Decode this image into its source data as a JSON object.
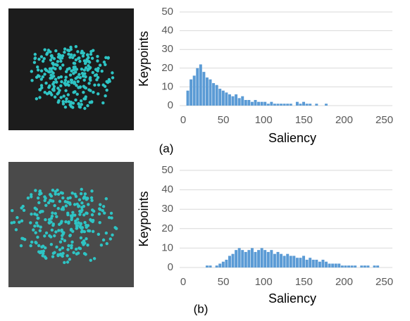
{
  "chart_data": [
    {
      "type": "histogram",
      "caption": "(a)",
      "xlabel": "Saliency",
      "ylabel": "Keypoints",
      "color": "#5b9bd5",
      "grid": true,
      "bins": [
        0,
        4,
        8,
        12,
        16,
        20,
        24,
        28,
        32,
        36,
        40,
        44,
        48,
        52,
        56,
        60,
        64,
        68,
        72,
        76,
        80,
        84,
        88,
        92,
        96,
        100,
        104,
        108,
        112,
        116,
        120,
        124,
        128,
        132,
        136,
        140,
        144,
        148,
        152,
        156,
        160,
        164,
        168,
        172,
        176,
        180,
        184,
        188,
        192,
        196,
        200,
        204,
        208,
        212,
        216,
        220,
        224,
        228,
        232,
        236,
        240,
        244,
        248,
        252
      ],
      "counts": [
        0,
        8,
        14,
        16,
        20,
        22,
        18,
        15,
        14,
        12,
        11,
        9,
        8,
        7,
        6,
        5,
        6,
        4,
        5,
        3,
        3,
        2,
        3,
        2,
        2,
        2,
        1,
        2,
        1,
        1,
        1,
        1,
        1,
        1,
        0,
        2,
        1,
        2,
        1,
        1,
        0,
        1,
        0,
        0,
        1,
        0,
        0,
        0,
        0,
        0,
        0,
        0,
        0,
        0,
        0,
        0,
        0,
        0,
        0,
        0,
        0,
        0,
        0
      ],
      "xlim": [
        0,
        260
      ],
      "ylim": [
        0,
        50
      ],
      "xticks": [
        0,
        50,
        100,
        150,
        200,
        250
      ],
      "yticks": [
        0,
        10,
        20,
        30,
        40,
        50
      ]
    },
    {
      "type": "histogram",
      "caption": "(b)",
      "xlabel": "Saliency",
      "ylabel": "Keypoints",
      "color": "#5b9bd5",
      "grid": true,
      "bins": [
        0,
        4,
        8,
        12,
        16,
        20,
        24,
        28,
        32,
        36,
        40,
        44,
        48,
        52,
        56,
        60,
        64,
        68,
        72,
        76,
        80,
        84,
        88,
        92,
        96,
        100,
        104,
        108,
        112,
        116,
        120,
        124,
        128,
        132,
        136,
        140,
        144,
        148,
        152,
        156,
        160,
        164,
        168,
        172,
        176,
        180,
        184,
        188,
        192,
        196,
        200,
        204,
        208,
        212,
        216,
        220,
        224,
        228,
        232,
        236,
        240,
        244,
        248,
        252
      ],
      "counts": [
        0,
        0,
        0,
        0,
        0,
        0,
        0,
        1,
        1,
        0,
        1,
        2,
        3,
        4,
        6,
        7,
        9,
        10,
        9,
        8,
        9,
        10,
        8,
        9,
        10,
        9,
        8,
        9,
        7,
        8,
        7,
        6,
        7,
        6,
        6,
        5,
        5,
        6,
        4,
        5,
        4,
        4,
        3,
        4,
        3,
        2,
        2,
        2,
        2,
        1,
        1,
        1,
        1,
        1,
        0,
        1,
        1,
        1,
        0,
        1,
        1,
        0,
        0
      ],
      "xlim": [
        0,
        260
      ],
      "ylim": [
        0,
        50
      ],
      "xticks": [
        0,
        50,
        100,
        150,
        200,
        250
      ],
      "yticks": [
        0,
        10,
        20,
        30,
        40,
        50
      ]
    }
  ]
}
